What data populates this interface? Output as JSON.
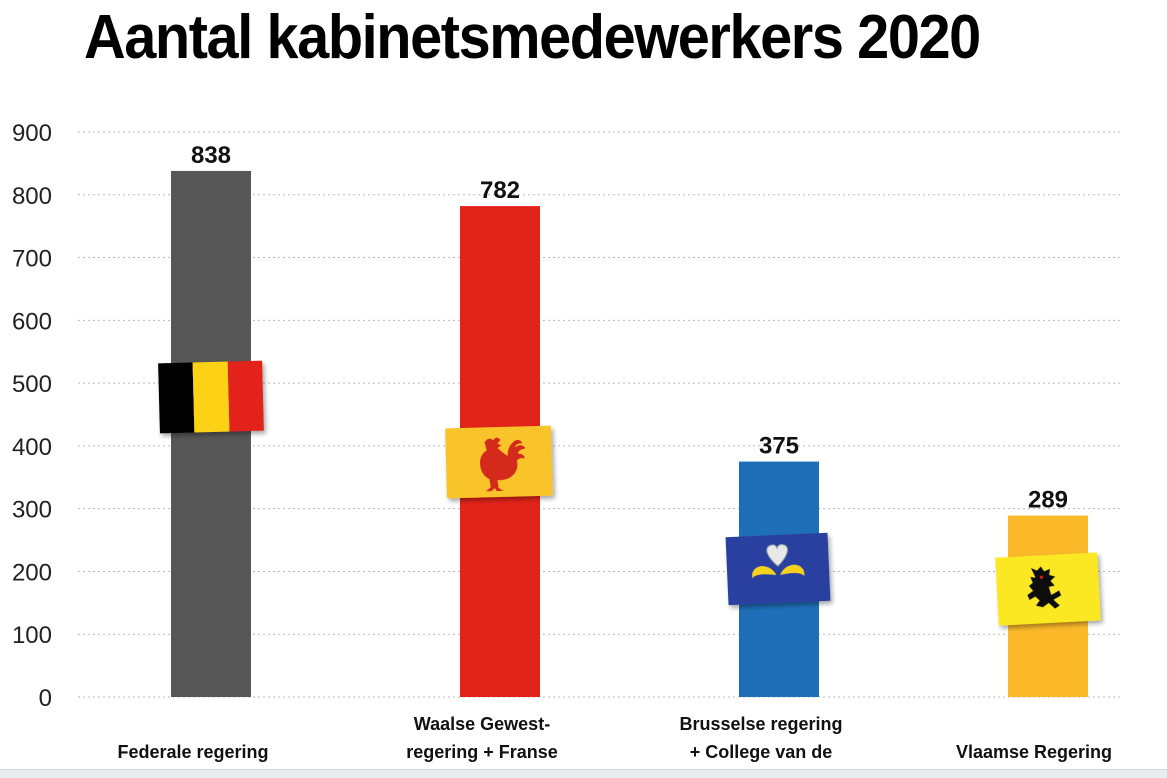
{
  "chart_data": {
    "type": "bar",
    "title": "Aantal kabinetsmedewerkers 2020",
    "xlabel": "",
    "ylabel": "",
    "ylim": [
      0,
      900
    ],
    "yticks": [
      0,
      100,
      200,
      300,
      400,
      500,
      600,
      700,
      800,
      900
    ],
    "grid": true,
    "categories": [
      "Federale regering",
      "Waalse Gewest- regering + Franse Gemeenschapsregering",
      "Brusselse regering + College van de Franse Gemeenschapscommissie",
      "Vlaamse Regering"
    ],
    "category_lines": [
      [
        "Federale regering"
      ],
      [
        "Waalse Gewest-",
        "regering + Franse"
      ],
      [
        "Brusselse regering",
        "+ College van de"
      ],
      [
        "Vlaamse Regering"
      ]
    ],
    "values": [
      838,
      782,
      375,
      289
    ],
    "value_labels": [
      "838",
      "782",
      "375",
      "289"
    ],
    "colors": [
      "#575757",
      "#e2231a",
      "#1f6fb8",
      "#fbb829"
    ],
    "emblems": [
      "belgian-flag",
      "walloon-rooster-flag",
      "brussels-iris-flag",
      "flemish-lion-flag"
    ]
  }
}
